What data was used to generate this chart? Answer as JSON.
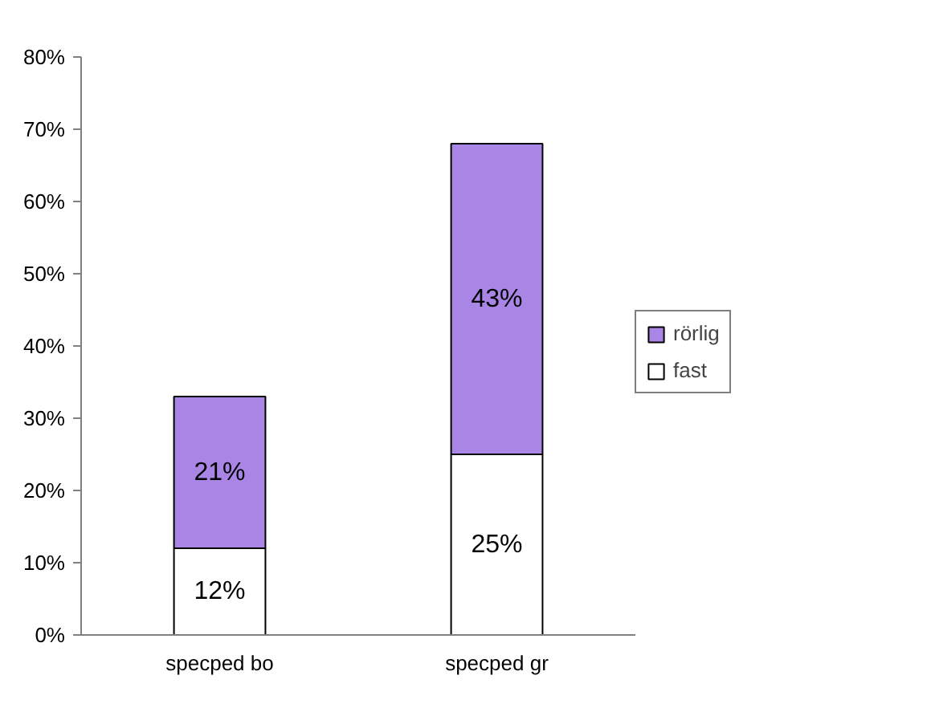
{
  "chart_data": {
    "type": "bar",
    "stacked": true,
    "categories": [
      "specped bo",
      "specped gr"
    ],
    "series": [
      {
        "name": "fast",
        "color": "#ffffff",
        "values": [
          12,
          25
        ],
        "value_labels": [
          "12%",
          "25%"
        ]
      },
      {
        "name": "rörlig",
        "color": "#a985e6",
        "values": [
          21,
          43
        ],
        "value_labels": [
          "21%",
          "43%"
        ]
      }
    ],
    "ylim": [
      0,
      80
    ],
    "yticks": [
      {
        "value": 0,
        "label": "0%"
      },
      {
        "value": 10,
        "label": "10%"
      },
      {
        "value": 20,
        "label": "20%"
      },
      {
        "value": 30,
        "label": "30%"
      },
      {
        "value": 40,
        "label": "40%"
      },
      {
        "value": 50,
        "label": "50%"
      },
      {
        "value": 60,
        "label": "60%"
      },
      {
        "value": 70,
        "label": "70%"
      },
      {
        "value": 80,
        "label": "80%"
      }
    ],
    "legend": "right"
  }
}
